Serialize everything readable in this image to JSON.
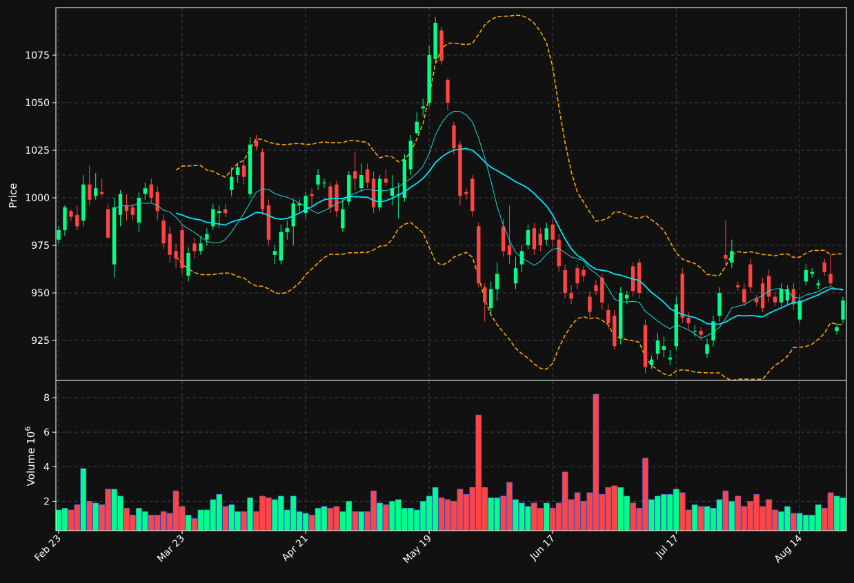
{
  "theme": {
    "background": "#111111",
    "panel_border": "#ffffff",
    "grid": "#444444",
    "up_color": "#00ff88",
    "down_color": "#ff4444",
    "volume_edge": "#4466ff",
    "ma_fast_color": "#26d7d7",
    "ma_slow_color": "#00e5ff",
    "band_color": "#ffa500",
    "text_color": "#ffffff"
  },
  "chart_data": {
    "type": "candlestick",
    "price_panel": {
      "ylabel": "Price",
      "yticks": [
        925,
        950,
        975,
        1000,
        1025,
        1050,
        1075
      ],
      "ylim": [
        904,
        1100
      ],
      "grid": true
    },
    "volume_panel": {
      "ylabel": "Volume  10",
      "ylabel_exponent": "6",
      "yticks": [
        2,
        4,
        6,
        8
      ],
      "ylim": [
        0.3,
        9.0
      ],
      "grid": true
    },
    "x_ticks": [
      {
        "label": "Feb 23",
        "index": 0
      },
      {
        "label": "Mar 23",
        "index": 20
      },
      {
        "label": "Apr 21",
        "index": 40
      },
      {
        "label": "May 19",
        "index": 60
      },
      {
        "label": "Jun 17",
        "index": 80
      },
      {
        "label": "Jul 17",
        "index": 100
      },
      {
        "label": "Aug 14",
        "index": 120
      }
    ],
    "candles": [
      [
        978,
        983,
        976,
        985,
        1.5
      ],
      [
        983,
        995,
        980,
        996,
        1.6
      ],
      [
        993,
        990,
        988,
        994,
        1.5
      ],
      [
        991,
        985,
        983,
        996,
        1.8
      ],
      [
        988,
        1007,
        985,
        1012,
        3.9
      ],
      [
        1007,
        999,
        996,
        1017,
        2.0
      ],
      [
        1001,
        1005,
        999,
        1013,
        1.9
      ],
      [
        1003,
        1002,
        1001,
        1010,
        1.8
      ],
      [
        994,
        979,
        979,
        997,
        2.7
      ],
      [
        965,
        995,
        958,
        1000,
        2.7
      ],
      [
        991,
        1002,
        985,
        1004,
        2.3
      ],
      [
        996,
        993,
        988,
        1002,
        1.6
      ],
      [
        995,
        991,
        988,
        997,
        1.2
      ],
      [
        987,
        1000,
        982,
        1003,
        1.6
      ],
      [
        1002,
        1005,
        999,
        1008,
        1.4
      ],
      [
        1007,
        1000,
        997,
        1010,
        1.2
      ],
      [
        1003,
        993,
        988,
        1006,
        1.2
      ],
      [
        988,
        976,
        973,
        991,
        1.4
      ],
      [
        981,
        970,
        966,
        985,
        1.3
      ],
      [
        972,
        968,
        963,
        976,
        2.6
      ],
      [
        983,
        963,
        960,
        986,
        1.7
      ],
      [
        959,
        971,
        956,
        974,
        1.2
      ],
      [
        976,
        972,
        968,
        979,
        1.0
      ],
      [
        972,
        976,
        970,
        980,
        1.5
      ],
      [
        978,
        981,
        975,
        984,
        1.5
      ],
      [
        985,
        994,
        983,
        997,
        2.1
      ],
      [
        992,
        993,
        984,
        996,
        2.4
      ],
      [
        994,
        992,
        990,
        997,
        1.7
      ],
      [
        1004,
        1011,
        1001,
        1016,
        1.8
      ],
      [
        1012,
        1016,
        1008,
        1018,
        1.4
      ],
      [
        1017,
        1011,
        1007,
        1020,
        1.4
      ],
      [
        1002,
        1028,
        1000,
        1032,
        2.2
      ],
      [
        1030,
        1027,
        1025,
        1033,
        1.4
      ],
      [
        1024,
        994,
        991,
        1026,
        2.3
      ],
      [
        996,
        978,
        975,
        999,
        2.2
      ],
      [
        970,
        972,
        965,
        975,
        2.1
      ],
      [
        967,
        982,
        965,
        986,
        2.3
      ],
      [
        982,
        984,
        978,
        988,
        1.5
      ],
      [
        985,
        997,
        975,
        999,
        2.3
      ],
      [
        996,
        997,
        993,
        999,
        1.4
      ],
      [
        992,
        1001,
        989,
        1003,
        1.3
      ],
      [
        1002,
        1001,
        996,
        1005,
        1.2
      ],
      [
        1007,
        1012,
        1004,
        1015,
        1.6
      ],
      [
        1008,
        1008,
        1005,
        1010,
        1.7
      ],
      [
        1006,
        995,
        992,
        1008,
        1.6
      ],
      [
        1007,
        993,
        990,
        1009,
        1.7
      ],
      [
        984,
        994,
        982,
        1000,
        1.4
      ],
      [
        998,
        1012,
        996,
        1014,
        2.0
      ],
      [
        1014,
        1010,
        1004,
        1024,
        1.4
      ],
      [
        1005,
        1012,
        1003,
        1018,
        1.4
      ],
      [
        1015,
        1008,
        1005,
        1018,
        1.4
      ],
      [
        1010,
        995,
        992,
        1014,
        2.6
      ],
      [
        995,
        1010,
        993,
        1012,
        1.9
      ],
      [
        1010,
        1008,
        1006,
        1015,
        1.8
      ],
      [
        1001,
        1005,
        996,
        1012,
        2.0
      ],
      [
        1002,
        1002,
        989,
        1008,
        2.1
      ],
      [
        1000,
        1020,
        998,
        1023,
        1.6
      ],
      [
        1015,
        1030,
        1012,
        1033,
        1.6
      ],
      [
        1034,
        1040,
        1033,
        1045,
        1.5
      ],
      [
        1047,
        1048,
        1043,
        1052,
        2.0
      ],
      [
        1050,
        1075,
        1048,
        1080,
        2.3
      ],
      [
        1073,
        1092,
        1071,
        1095,
        2.8
      ],
      [
        1088,
        1072,
        1070,
        1090,
        2.2
      ],
      [
        1062,
        1050,
        1046,
        1063,
        2.1
      ],
      [
        1038,
        1026,
        1023,
        1040,
        2.0
      ],
      [
        1028,
        1001,
        996,
        1030,
        2.7
      ],
      [
        1003,
        1002,
        999,
        1005,
        2.4
      ],
      [
        1010,
        993,
        990,
        1012,
        2.8
      ],
      [
        985,
        955,
        953,
        987,
        7.0
      ],
      [
        953,
        945,
        935,
        955,
        2.8
      ],
      [
        942,
        952,
        938,
        956,
        2.2
      ],
      [
        952,
        960,
        946,
        966,
        2.2
      ],
      [
        985,
        972,
        969,
        989,
        2.3
      ],
      [
        975,
        970,
        965,
        996,
        3.1
      ],
      [
        955,
        963,
        952,
        969,
        2.1
      ],
      [
        965,
        972,
        961,
        975,
        1.9
      ],
      [
        975,
        983,
        973,
        986,
        1.7
      ],
      [
        984,
        973,
        970,
        987,
        1.9
      ],
      [
        981,
        975,
        972,
        984,
        1.6
      ],
      [
        978,
        984,
        975,
        987,
        1.9
      ],
      [
        986,
        978,
        974,
        989,
        1.6
      ],
      [
        978,
        964,
        961,
        981,
        1.9
      ],
      [
        962,
        950,
        947,
        965,
        3.7
      ],
      [
        950,
        947,
        944,
        954,
        2.1
      ],
      [
        963,
        955,
        952,
        965,
        2.5
      ],
      [
        962,
        959,
        956,
        964,
        2.0
      ],
      [
        948,
        940,
        937,
        951,
        2.5
      ],
      [
        954,
        951,
        949,
        957,
        8.2
      ],
      [
        958,
        945,
        941,
        960,
        2.4
      ],
      [
        941,
        934,
        931,
        944,
        2.8
      ],
      [
        938,
        922,
        920,
        941,
        2.9
      ],
      [
        926,
        950,
        923,
        953,
        2.8
      ],
      [
        947,
        949,
        944,
        951,
        2.3
      ],
      [
        964,
        951,
        948,
        966,
        1.9
      ],
      [
        966,
        950,
        947,
        968,
        1.6
      ],
      [
        933,
        911,
        908,
        936,
        4.5
      ],
      [
        912,
        915,
        910,
        917,
        2.1
      ],
      [
        918,
        925,
        915,
        929,
        2.3
      ],
      [
        920,
        922,
        916,
        927,
        2.4
      ],
      [
        915,
        916,
        912,
        920,
        2.4
      ],
      [
        922,
        944,
        920,
        948,
        2.7
      ],
      [
        960,
        937,
        934,
        963,
        2.5
      ],
      [
        937,
        934,
        931,
        940,
        1.5
      ],
      [
        930,
        930,
        927,
        933,
        1.8
      ],
      [
        930,
        928,
        925,
        932,
        1.7
      ],
      [
        918,
        923,
        916,
        926,
        1.7
      ],
      [
        925,
        935,
        922,
        938,
        1.6
      ],
      [
        938,
        950,
        935,
        953,
        2.1
      ],
      [
        970,
        968,
        965,
        988,
        2.6
      ],
      [
        966,
        972,
        963,
        978,
        2.0
      ],
      [
        954,
        953,
        951,
        956,
        2.3
      ],
      [
        952,
        945,
        943,
        955,
        1.7
      ],
      [
        965,
        953,
        950,
        968,
        2.0
      ],
      [
        947,
        945,
        943,
        949,
        2.4
      ],
      [
        955,
        942,
        940,
        958,
        1.7
      ],
      [
        959,
        948,
        945,
        962,
        2.1
      ],
      [
        948,
        945,
        943,
        951,
        1.5
      ],
      [
        945,
        952,
        943,
        955,
        1.4
      ],
      [
        946,
        952,
        944,
        954,
        1.7
      ],
      [
        952,
        944,
        941,
        955,
        1.3
      ],
      [
        936,
        946,
        934,
        949,
        1.3
      ],
      [
        956,
        962,
        954,
        965,
        1.2
      ],
      [
        960,
        961,
        958,
        963,
        1.2
      ],
      [
        954,
        955,
        952,
        957,
        1.8
      ],
      [
        966,
        961,
        959,
        968,
        1.6
      ],
      [
        960,
        955,
        953,
        970,
        2.5
      ],
      [
        930,
        932,
        928,
        934,
        2.3
      ],
      [
        936,
        946,
        934,
        948,
        2.2
      ]
    ]
  }
}
